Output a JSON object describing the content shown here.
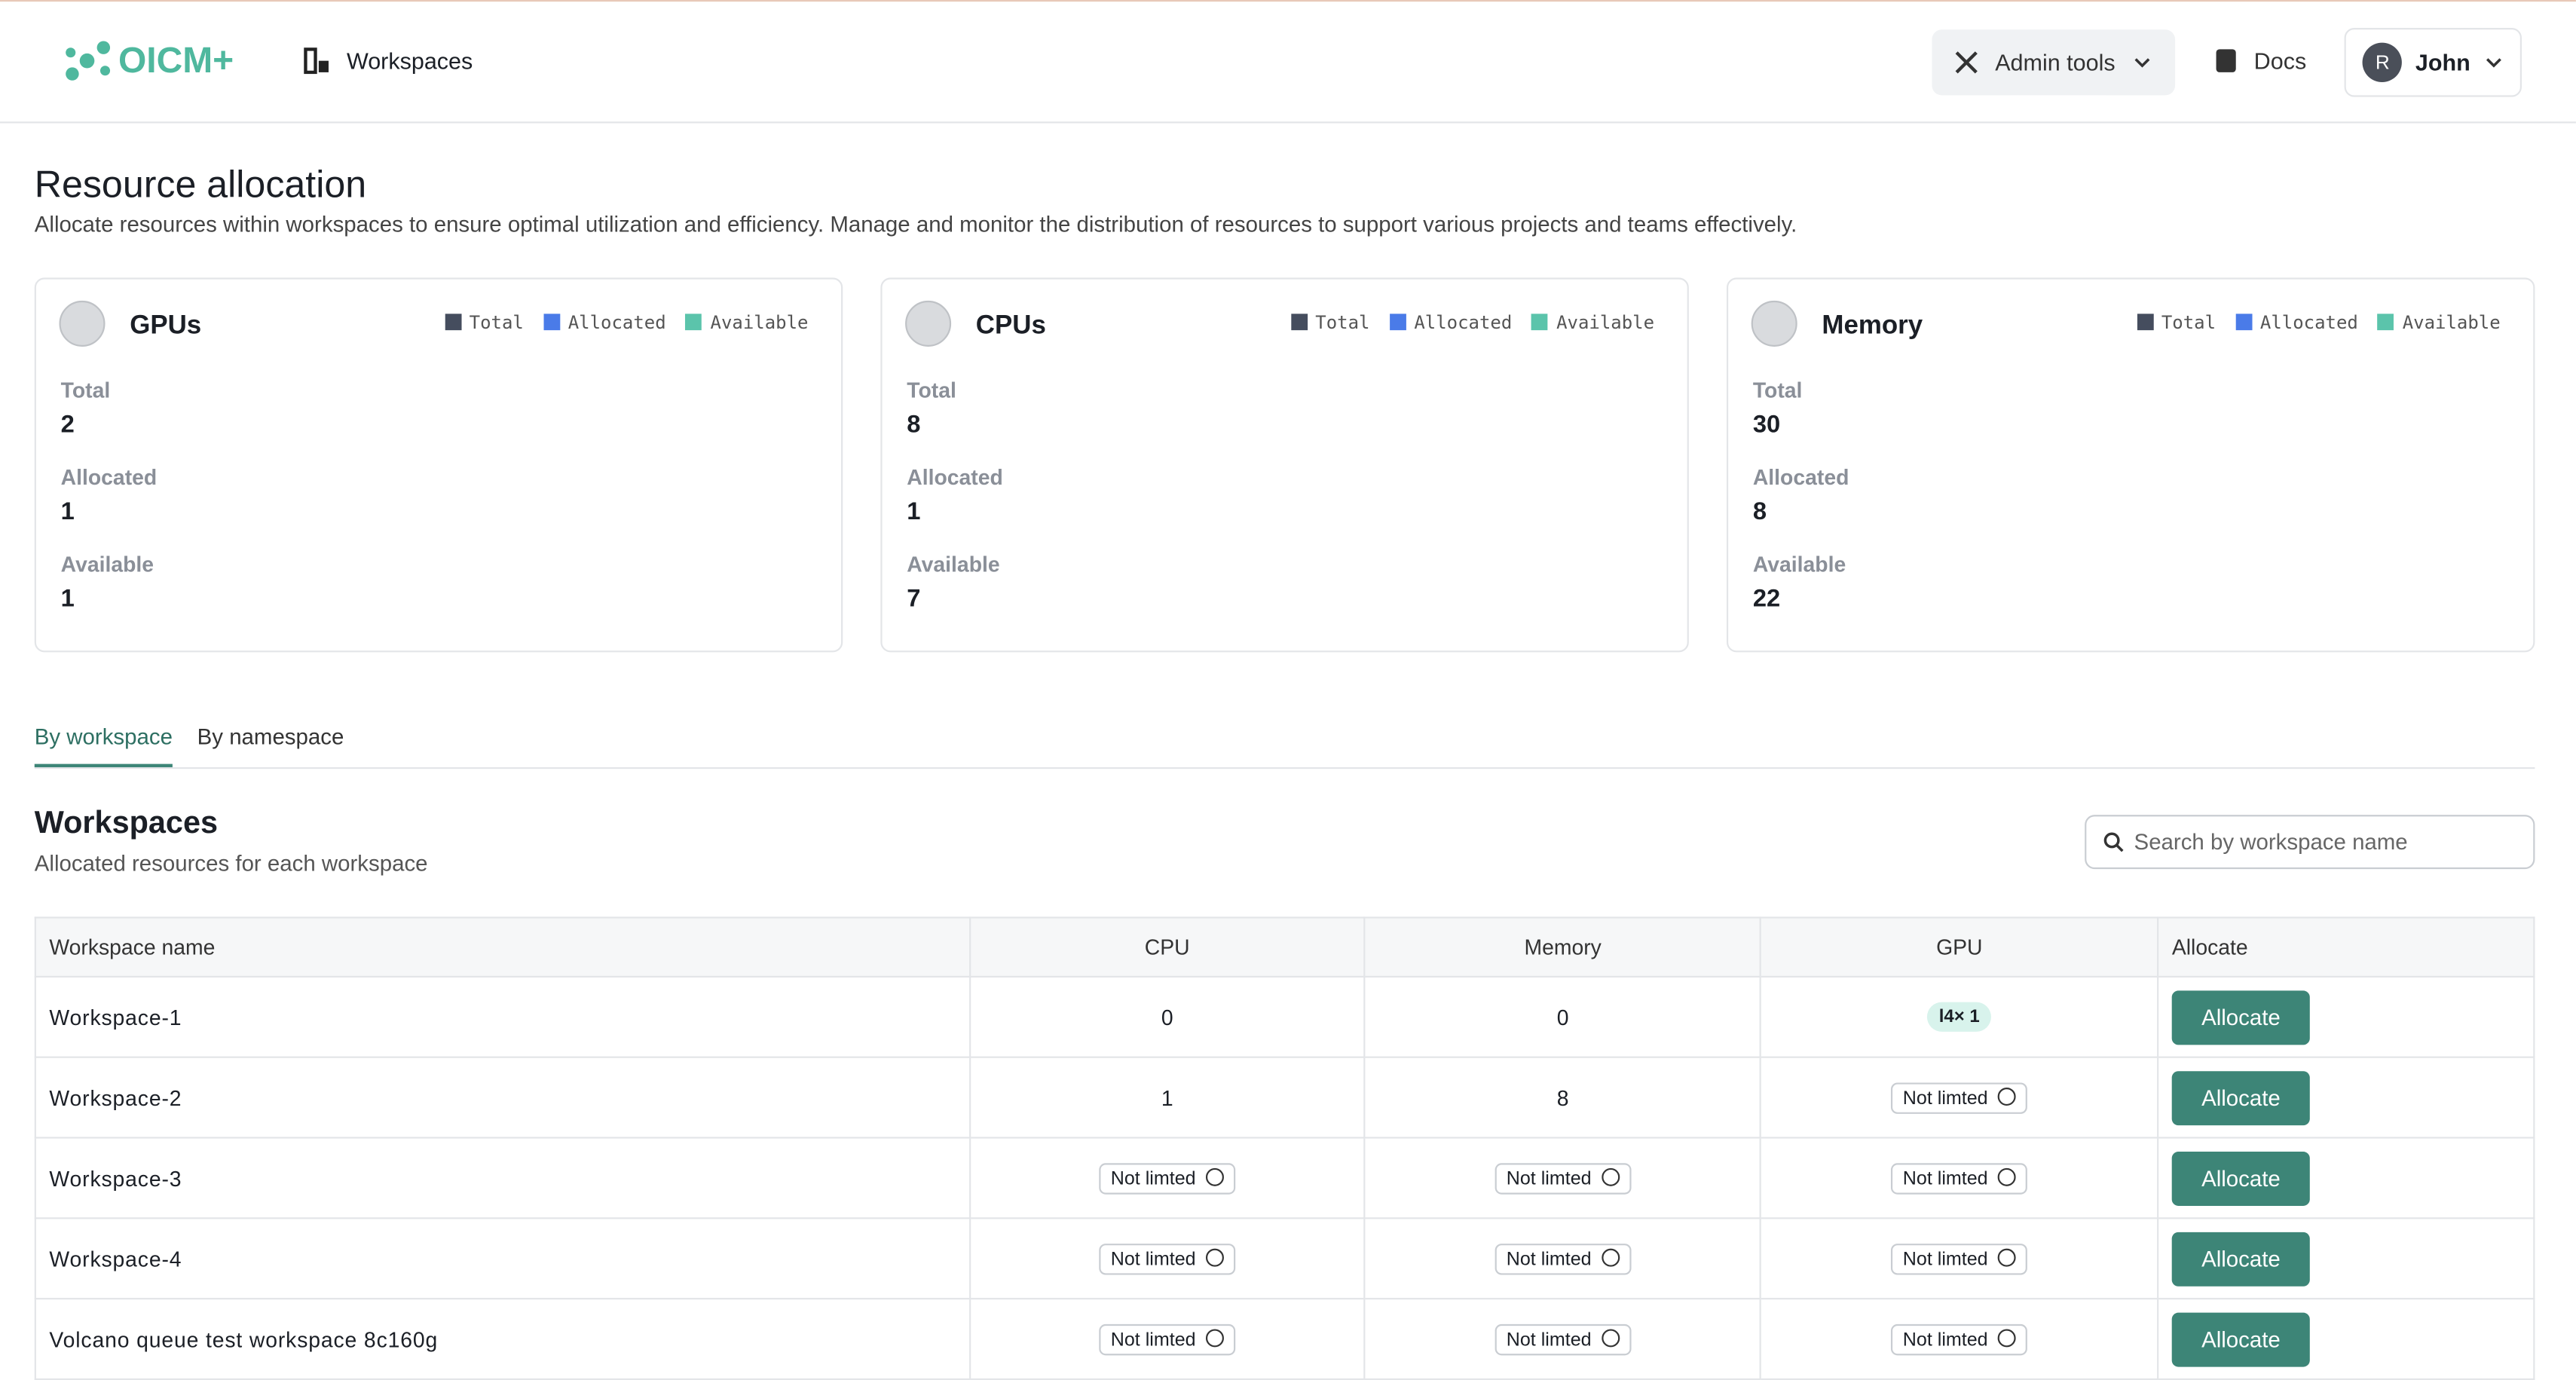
{
  "header": {
    "logo": "OICM+",
    "nav": "Workspaces",
    "admin_tools": "Admin tools",
    "docs": "Docs",
    "avatar": "R",
    "user": "John"
  },
  "page": {
    "title": "Resource allocation",
    "description": "Allocate resources within workspaces to ensure optimal utilization and efficiency. Manage and monitor the distribution of resources to support various projects and teams effectively."
  },
  "legend_colors": [
    "#454d5e",
    "#4a7be8",
    "#5bc4ab"
  ],
  "cards": [
    {
      "title": "GPUs",
      "legend": [
        "Total",
        "Allocated",
        "Available"
      ],
      "stats": [
        {
          "label": "Total",
          "value": 2
        },
        {
          "label": "Allocated",
          "value": 1
        },
        {
          "label": "Available",
          "value": 1
        }
      ]
    },
    {
      "title": "CPUs",
      "legend": [
        "Total",
        "Allocated",
        "Available"
      ],
      "stats": [
        {
          "label": "Total",
          "value": 8
        },
        {
          "label": "Allocated",
          "value": 1
        },
        {
          "label": "Available",
          "value": 7
        }
      ]
    },
    {
      "title": "Memory",
      "legend": [
        "Total",
        "Allocated",
        "Available"
      ],
      "stats": [
        {
          "label": "Total",
          "value": 30
        },
        {
          "label": "Allocated",
          "value": 8
        },
        {
          "label": "Available",
          "value": 22
        }
      ]
    }
  ],
  "tabs": [
    "By workspace",
    "By namespace"
  ],
  "workspaces": {
    "title": "Workspaces",
    "subtitle": "Allocated resources for each workspace",
    "search_placeholder": "Search by workspace name"
  },
  "table": {
    "columns": [
      "Workspace name",
      "CPU",
      "Memory",
      "GPU",
      "Allocate"
    ],
    "rows": [
      [
        "Workspace-1",
        0,
        0,
        {
          "chip": "l4× 1"
        },
        "Allocate"
      ],
      [
        "Workspace-2",
        1,
        8,
        "Not limted",
        "Allocate"
      ],
      [
        "Workspace-3",
        "Not limted",
        "Not limted",
        "Not limted",
        "Allocate"
      ],
      [
        "Workspace-4",
        "Not limted",
        "Not limted",
        "Not limted",
        "Allocate"
      ],
      [
        "Volcano queue test workspace 8c160g",
        "Not limted",
        "Not limted",
        "Not limted",
        "Allocate"
      ]
    ]
  }
}
